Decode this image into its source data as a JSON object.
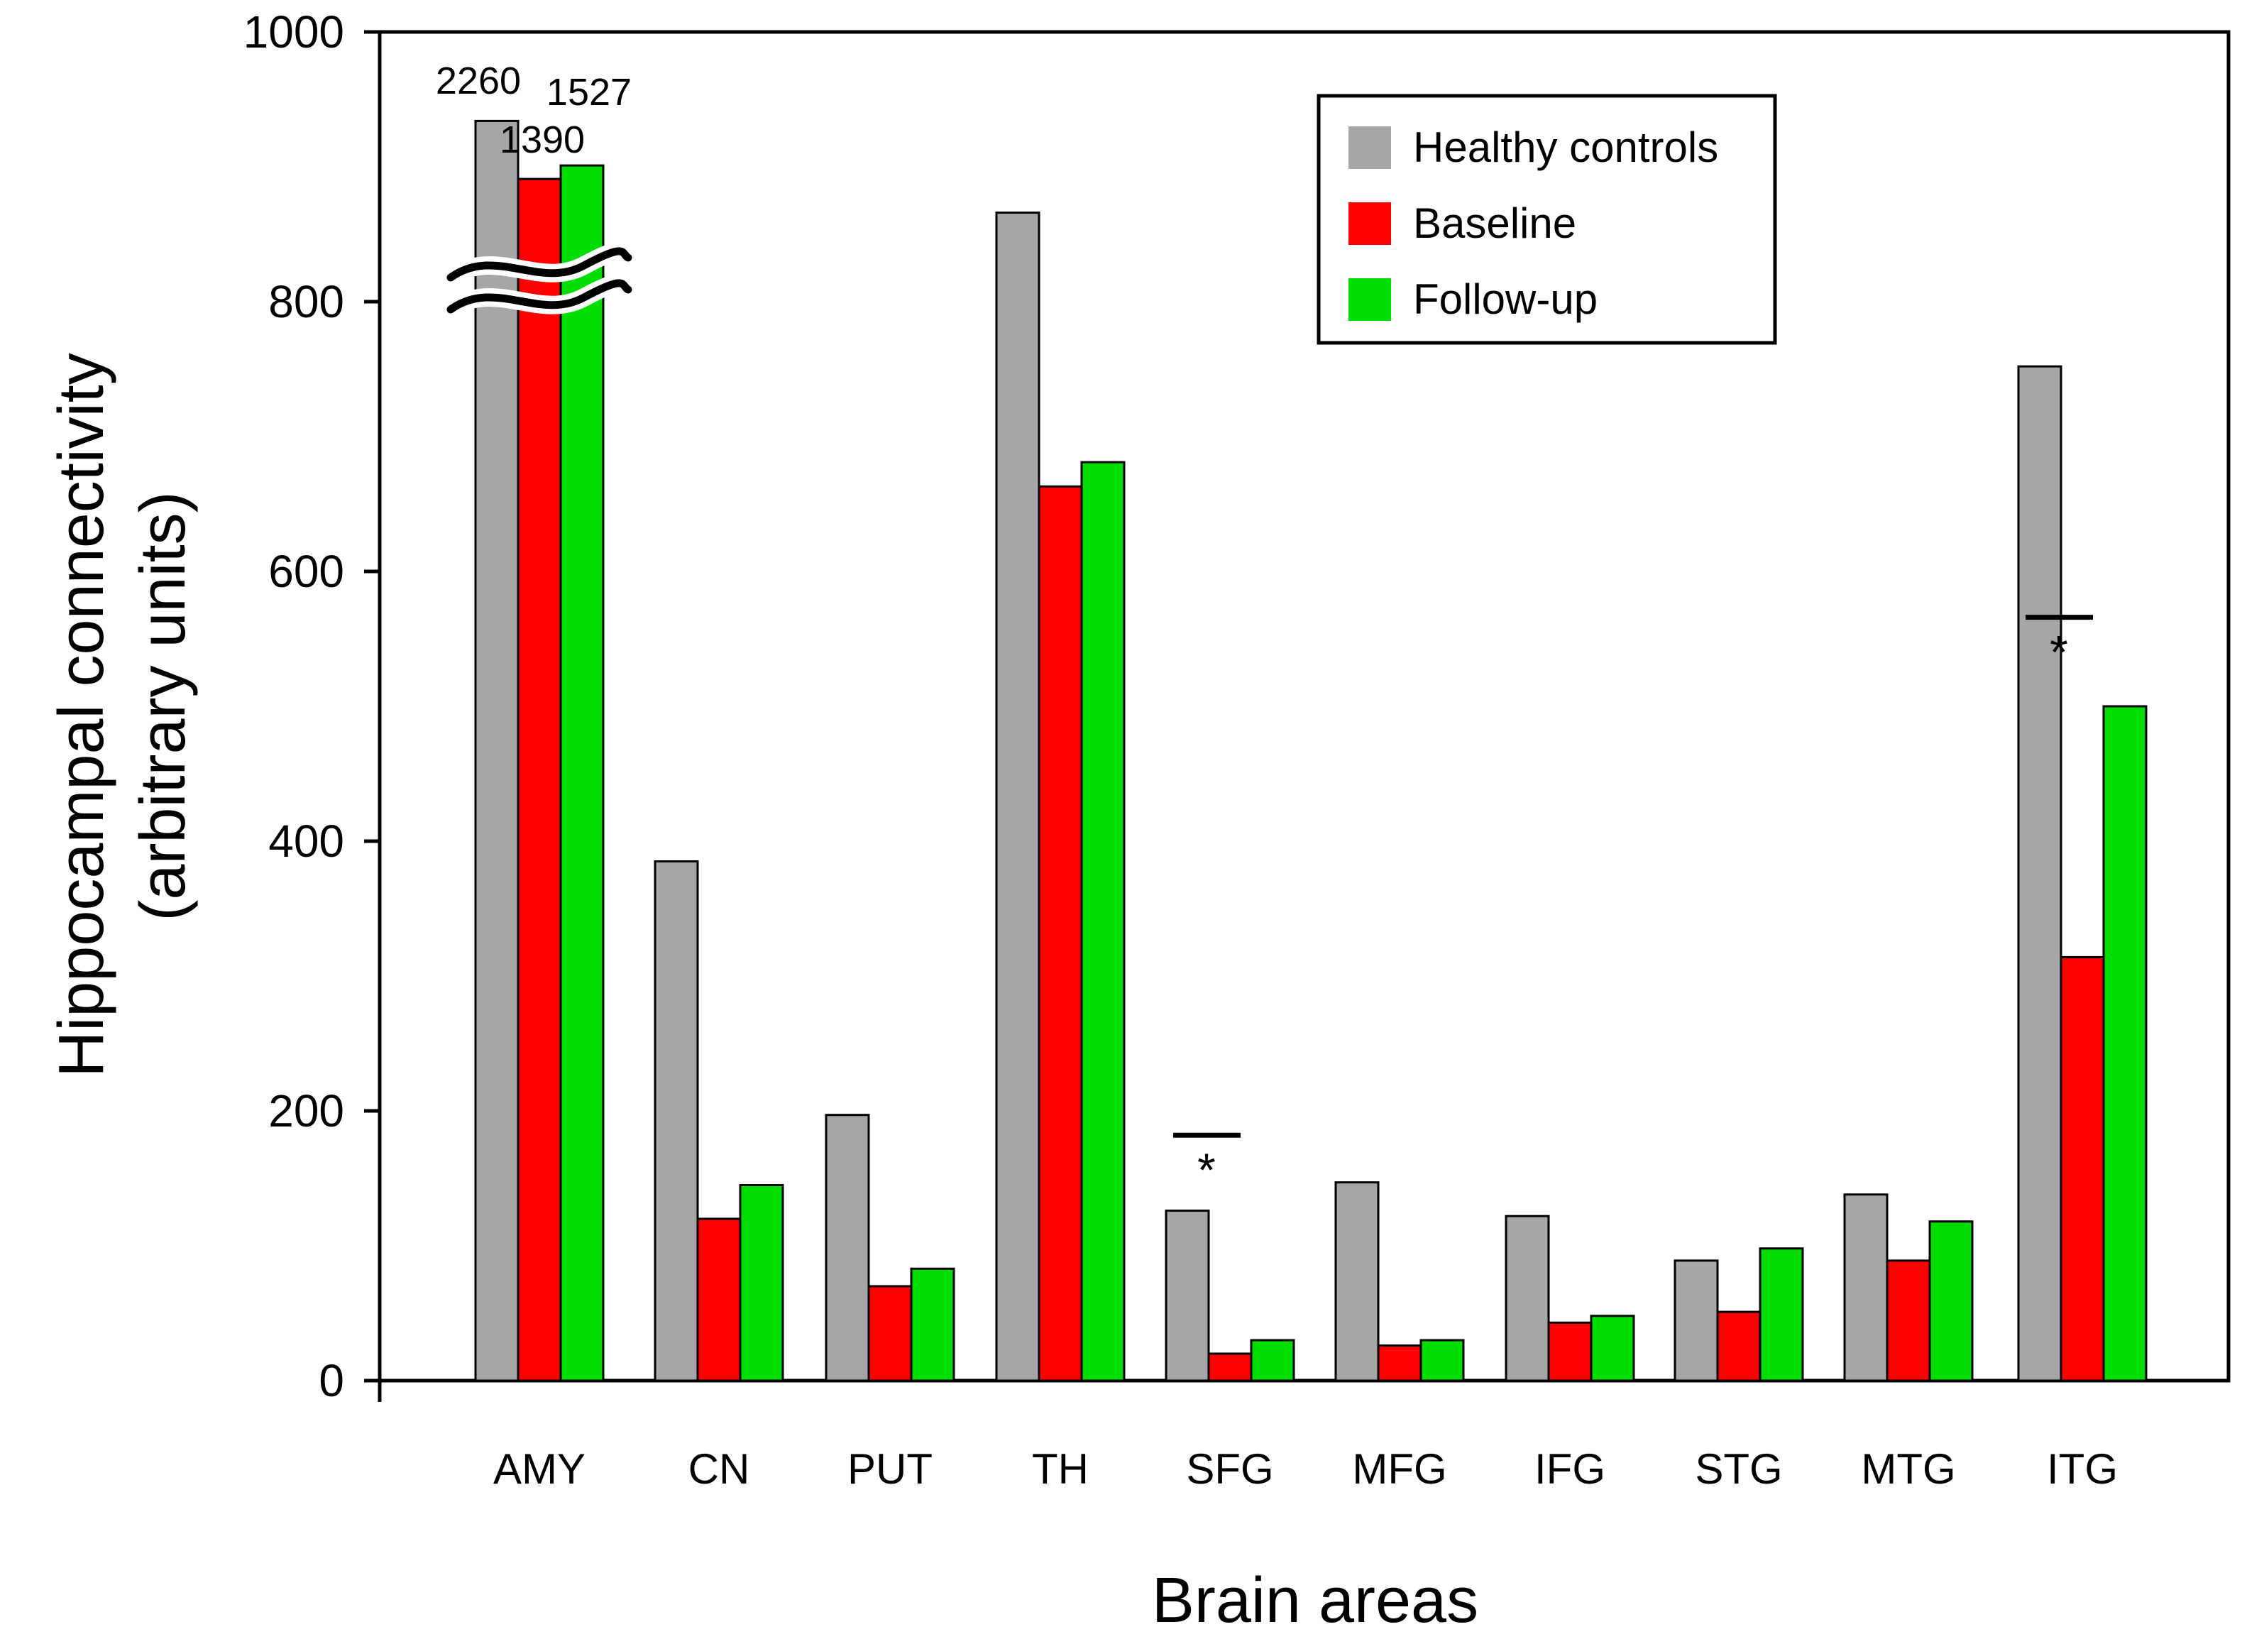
{
  "chart_data": {
    "type": "bar",
    "title": "",
    "xlabel": "Brain areas",
    "ylabel_line1": "Hippocampal connectivity",
    "ylabel_line2": "(arbitrary units)",
    "ylim": [
      0,
      1000
    ],
    "yticks": [
      0,
      200,
      400,
      600,
      800,
      1000
    ],
    "categories": [
      "AMY",
      "CN",
      "PUT",
      "TH",
      "SFG",
      "MFG",
      "IFG",
      "STG",
      "MTG",
      "ITG"
    ],
    "series": [
      {
        "name": "Healthy controls",
        "color": "#a6a6a6",
        "values": [
          2260,
          385,
          197,
          866,
          126,
          147,
          122,
          89,
          138,
          752
        ]
      },
      {
        "name": "Baseline",
        "color": "#ff0000",
        "values": [
          1390,
          120,
          70,
          663,
          20,
          26,
          43,
          51,
          89,
          314
        ]
      },
      {
        "name": "Follow-up",
        "color": "#00dd00",
        "values": [
          1527,
          145,
          83,
          681,
          30,
          30,
          48,
          98,
          118,
          500
        ]
      }
    ],
    "axis_break": {
      "category": "AMY",
      "drawn_values": [
        934,
        891,
        901
      ]
    },
    "value_labels": [
      {
        "category": "AMY",
        "series": "Healthy controls",
        "text": "2260"
      },
      {
        "category": "AMY",
        "series": "Follow-up",
        "text": "1527"
      },
      {
        "category": "AMY",
        "series": "Baseline",
        "text": "1390"
      }
    ],
    "significance": [
      {
        "category": "SFG",
        "text": "*",
        "line_value": 182
      },
      {
        "category": "ITG",
        "text": "*",
        "line_value": 566
      }
    ],
    "legend_position": "top-right"
  }
}
